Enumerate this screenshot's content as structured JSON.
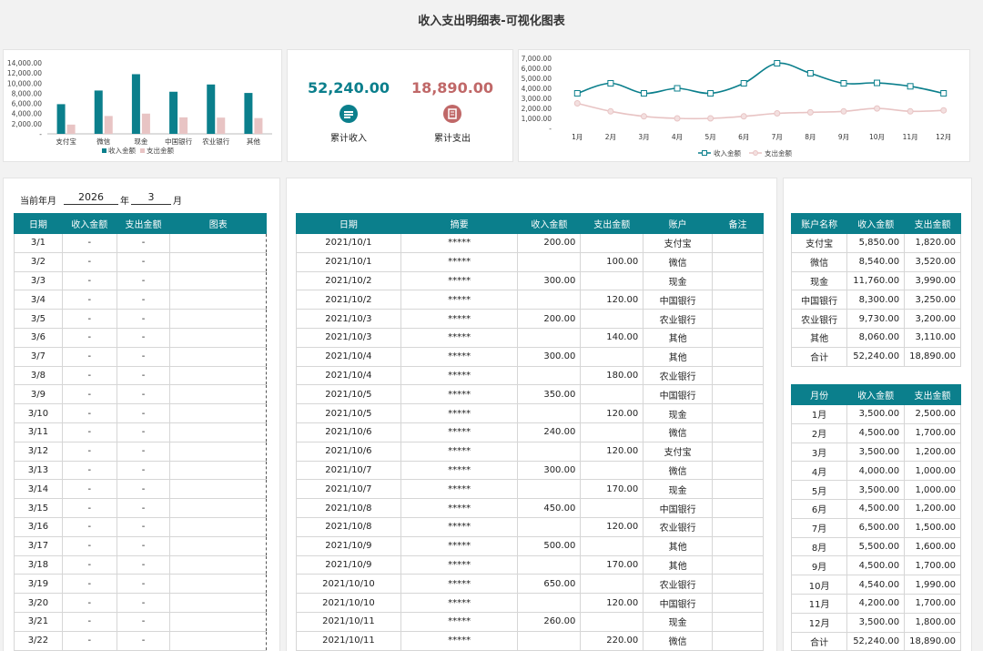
{
  "title": "收入支出明细表-可视化图表",
  "colors": {
    "teal": "#0b7f8c",
    "pink": "#e8c4c4",
    "income_text": "#0b7f8c",
    "expense_text": "#c06868",
    "expense_icon": "#c06868"
  },
  "kpi": {
    "income_value": "52,240.00",
    "income_label": "累计收入",
    "income_icon": "money-icon",
    "expense_value": "18,890.00",
    "expense_label": "累计支出",
    "expense_icon": "receipt-icon"
  },
  "bar_chart": {
    "type": "bar",
    "categories": [
      "支付宝",
      "微信",
      "现金",
      "中国银行",
      "农业银行",
      "其他"
    ],
    "series": [
      {
        "name": "收入金额",
        "values": [
          5850,
          8540,
          11760,
          8300,
          9730,
          8060
        ]
      },
      {
        "name": "支出金额",
        "values": [
          1820,
          3520,
          3990,
          3250,
          3200,
          3110
        ]
      }
    ],
    "yticks": [
      "14,000.00",
      "12,000.00",
      "10,000.00",
      "8,000.00",
      "6,000.00",
      "4,000.00",
      "2,000.00",
      "-"
    ],
    "ylim": [
      0,
      14000
    ],
    "legend": "bottom"
  },
  "line_chart": {
    "type": "line",
    "categories": [
      "1月",
      "2月",
      "3月",
      "4月",
      "5月",
      "6月",
      "7月",
      "8月",
      "9月",
      "10月",
      "11月",
      "12月"
    ],
    "series": [
      {
        "name": "收入金额",
        "values": [
          3500,
          4500,
          3500,
          4000,
          3500,
          4500,
          6500,
          5500,
          4500,
          4540,
          4200,
          3500
        ]
      },
      {
        "name": "支出金额",
        "values": [
          2500,
          1700,
          1200,
          1000,
          1000,
          1200,
          1500,
          1600,
          1700,
          1990,
          1700,
          1800
        ]
      }
    ],
    "yticks": [
      "7,000.00",
      "6,000.00",
      "5,000.00",
      "4,000.00",
      "3,000.00",
      "2,000.00",
      "1,000.00",
      "-"
    ],
    "ylim": [
      0,
      7000
    ],
    "legend": "bottom"
  },
  "ym": {
    "label": "当前年月",
    "year": "2026",
    "year_unit": "年",
    "month": "3",
    "month_unit": "月"
  },
  "daily": {
    "headers": [
      "日期",
      "收入金额",
      "支出金额",
      "图表"
    ],
    "rows": [
      [
        "3/1",
        "-",
        "-"
      ],
      [
        "3/2",
        "-",
        "-"
      ],
      [
        "3/3",
        "-",
        "-"
      ],
      [
        "3/4",
        "-",
        "-"
      ],
      [
        "3/5",
        "-",
        "-"
      ],
      [
        "3/6",
        "-",
        "-"
      ],
      [
        "3/7",
        "-",
        "-"
      ],
      [
        "3/8",
        "-",
        "-"
      ],
      [
        "3/9",
        "-",
        "-"
      ],
      [
        "3/10",
        "-",
        "-"
      ],
      [
        "3/11",
        "-",
        "-"
      ],
      [
        "3/12",
        "-",
        "-"
      ],
      [
        "3/13",
        "-",
        "-"
      ],
      [
        "3/14",
        "-",
        "-"
      ],
      [
        "3/15",
        "-",
        "-"
      ],
      [
        "3/16",
        "-",
        "-"
      ],
      [
        "3/17",
        "-",
        "-"
      ],
      [
        "3/18",
        "-",
        "-"
      ],
      [
        "3/19",
        "-",
        "-"
      ],
      [
        "3/20",
        "-",
        "-"
      ],
      [
        "3/21",
        "-",
        "-"
      ],
      [
        "3/22",
        "-",
        "-"
      ]
    ]
  },
  "detail": {
    "headers": [
      "日期",
      "摘要",
      "收入金额",
      "支出金额",
      "账户",
      "备注"
    ],
    "rows": [
      [
        "2021/10/1",
        "*****",
        "200.00",
        "",
        "支付宝",
        ""
      ],
      [
        "2021/10/1",
        "*****",
        "",
        "100.00",
        "微信",
        ""
      ],
      [
        "2021/10/2",
        "*****",
        "300.00",
        "",
        "现金",
        ""
      ],
      [
        "2021/10/2",
        "*****",
        "",
        "120.00",
        "中国银行",
        ""
      ],
      [
        "2021/10/3",
        "*****",
        "200.00",
        "",
        "农业银行",
        ""
      ],
      [
        "2021/10/3",
        "*****",
        "",
        "140.00",
        "其他",
        ""
      ],
      [
        "2021/10/4",
        "*****",
        "300.00",
        "",
        "其他",
        ""
      ],
      [
        "2021/10/4",
        "*****",
        "",
        "180.00",
        "农业银行",
        ""
      ],
      [
        "2021/10/5",
        "*****",
        "350.00",
        "",
        "中国银行",
        ""
      ],
      [
        "2021/10/5",
        "*****",
        "",
        "120.00",
        "现金",
        ""
      ],
      [
        "2021/10/6",
        "*****",
        "240.00",
        "",
        "微信",
        ""
      ],
      [
        "2021/10/6",
        "*****",
        "",
        "120.00",
        "支付宝",
        ""
      ],
      [
        "2021/10/7",
        "*****",
        "300.00",
        "",
        "微信",
        ""
      ],
      [
        "2021/10/7",
        "*****",
        "",
        "170.00",
        "现金",
        ""
      ],
      [
        "2021/10/8",
        "*****",
        "450.00",
        "",
        "中国银行",
        ""
      ],
      [
        "2021/10/8",
        "*****",
        "",
        "120.00",
        "农业银行",
        ""
      ],
      [
        "2021/10/9",
        "*****",
        "500.00",
        "",
        "其他",
        ""
      ],
      [
        "2021/10/9",
        "*****",
        "",
        "170.00",
        "其他",
        ""
      ],
      [
        "2021/10/10",
        "*****",
        "650.00",
        "",
        "农业银行",
        ""
      ],
      [
        "2021/10/10",
        "*****",
        "",
        "120.00",
        "中国银行",
        ""
      ],
      [
        "2021/10/11",
        "*****",
        "260.00",
        "",
        "现金",
        ""
      ],
      [
        "2021/10/11",
        "*****",
        "",
        "220.00",
        "微信",
        ""
      ]
    ]
  },
  "account_summary": {
    "headers": [
      "账户名称",
      "收入金额",
      "支出金额"
    ],
    "rows": [
      [
        "支付宝",
        "5,850.00",
        "1,820.00"
      ],
      [
        "微信",
        "8,540.00",
        "3,520.00"
      ],
      [
        "现金",
        "11,760.00",
        "3,990.00"
      ],
      [
        "中国银行",
        "8,300.00",
        "3,250.00"
      ],
      [
        "农业银行",
        "9,730.00",
        "3,200.00"
      ],
      [
        "其他",
        "8,060.00",
        "3,110.00"
      ],
      [
        "合计",
        "52,240.00",
        "18,890.00"
      ]
    ]
  },
  "month_summary": {
    "headers": [
      "月份",
      "收入金额",
      "支出金额"
    ],
    "rows": [
      [
        "1月",
        "3,500.00",
        "2,500.00"
      ],
      [
        "2月",
        "4,500.00",
        "1,700.00"
      ],
      [
        "3月",
        "3,500.00",
        "1,200.00"
      ],
      [
        "4月",
        "4,000.00",
        "1,000.00"
      ],
      [
        "5月",
        "3,500.00",
        "1,000.00"
      ],
      [
        "6月",
        "4,500.00",
        "1,200.00"
      ],
      [
        "7月",
        "6,500.00",
        "1,500.00"
      ],
      [
        "8月",
        "5,500.00",
        "1,600.00"
      ],
      [
        "9月",
        "4,500.00",
        "1,700.00"
      ],
      [
        "10月",
        "4,540.00",
        "1,990.00"
      ],
      [
        "11月",
        "4,200.00",
        "1,700.00"
      ],
      [
        "12月",
        "3,500.00",
        "1,800.00"
      ],
      [
        "合计",
        "52,240.00",
        "18,890.00"
      ]
    ]
  }
}
